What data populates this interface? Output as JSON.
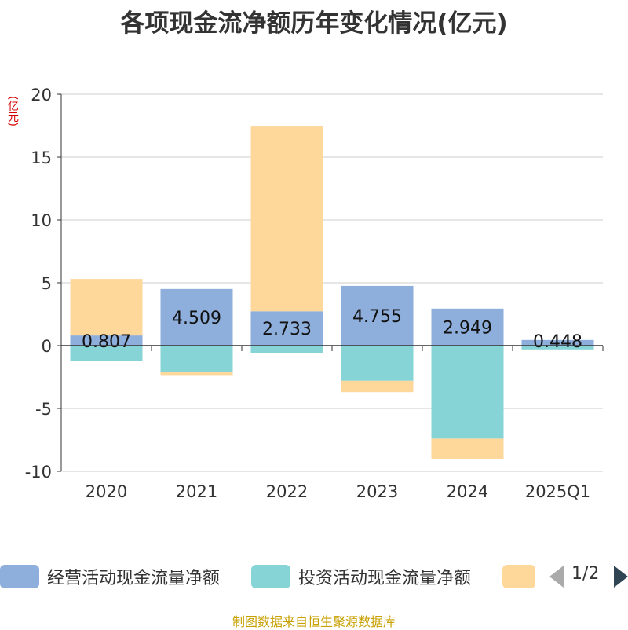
{
  "title": "各项现金流净额历年变化情况(亿元)",
  "unit": "(亿元)",
  "source": "制图数据来自恒生聚源数据库",
  "pager": {
    "text": "1/2"
  },
  "chart_data": {
    "type": "bar",
    "stacked": true,
    "categories": [
      "2020",
      "2021",
      "2022",
      "2023",
      "2024",
      "2025Q1"
    ],
    "ylim": [
      -10,
      20
    ],
    "yticks": [
      20,
      15,
      10,
      5,
      0,
      -5,
      -10
    ],
    "grid": true,
    "legend_position": "bottom",
    "series": [
      {
        "name": "经营活动现金流量净额",
        "color": "#8eaedb",
        "values": [
          0.807,
          4.509,
          2.733,
          4.755,
          2.949,
          0.448
        ],
        "labels": [
          "0.807",
          "4.509",
          "2.733",
          "4.755",
          "2.949",
          "0.448"
        ]
      },
      {
        "name": "投资活动现金流量净额",
        "color": "#86d4d6",
        "values": [
          -1.2,
          -2.1,
          -0.6,
          -2.8,
          -7.4,
          -0.3
        ]
      },
      {
        "name": "",
        "color": "#fed79b",
        "values": [
          4.5,
          -0.3,
          14.7,
          -0.9,
          -1.6,
          0.0
        ]
      }
    ]
  }
}
